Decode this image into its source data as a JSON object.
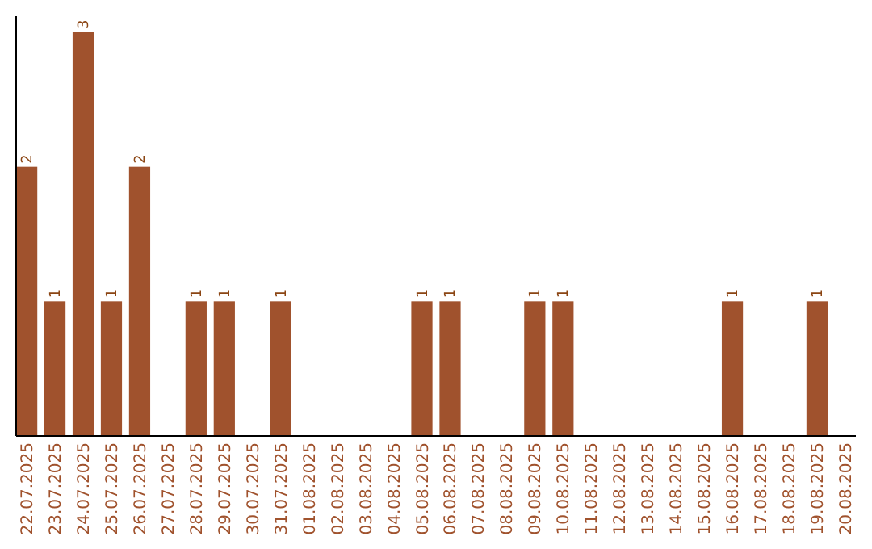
{
  "chart_data": {
    "type": "bar",
    "categories": [
      "22.07.2025",
      "23.07.2025",
      "24.07.2025",
      "25.07.2025",
      "26.07.2025",
      "27.07.2025",
      "28.07.2025",
      "29.07.2025",
      "30.07.2025",
      "31.07.2025",
      "01.08.2025",
      "02.08.2025",
      "03.08.2025",
      "04.08.2025",
      "05.08.2025",
      "06.08.2025",
      "07.08.2025",
      "08.08.2025",
      "09.08.2025",
      "10.08.2025",
      "11.08.2025",
      "12.08.2025",
      "13.08.2025",
      "14.08.2025",
      "15.08.2025",
      "16.08.2025",
      "17.08.2025",
      "18.08.2025",
      "19.08.2025",
      "20.08.2025"
    ],
    "values": [
      2,
      1,
      3,
      1,
      2,
      0,
      1,
      1,
      0,
      1,
      0,
      0,
      0,
      0,
      1,
      1,
      0,
      0,
      1,
      1,
      0,
      0,
      0,
      0,
      0,
      1,
      0,
      0,
      1,
      0
    ],
    "value_labels": [
      "2",
      "1",
      "3",
      "1",
      "2",
      null,
      "1",
      "1",
      null,
      "1",
      null,
      null,
      null,
      null,
      "1",
      "1",
      null,
      null,
      "1",
      "1",
      null,
      null,
      null,
      null,
      null,
      "1",
      null,
      null,
      "1",
      null
    ],
    "color": "#a0522d",
    "ylim": [
      0,
      3.12
    ],
    "tick_labels": "x"
  }
}
